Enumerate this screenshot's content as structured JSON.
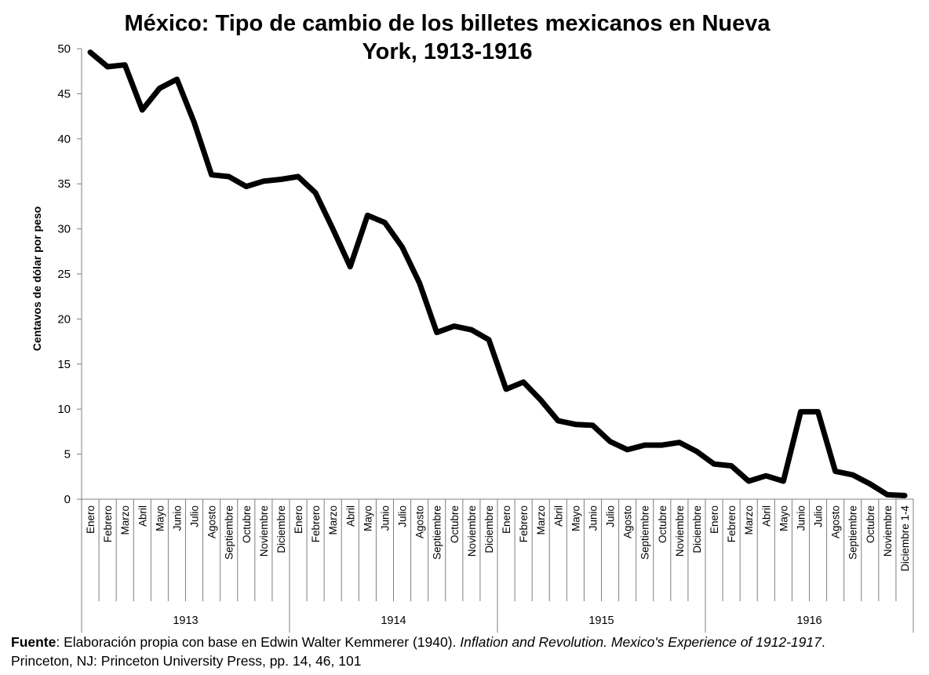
{
  "title": "México: Tipo de cambio de los billetes mexicanos en Nueva York, 1913-1916",
  "source": {
    "label": "Fuente",
    "text1": ": Elaboración propia con base en Edwin Walter Kemmerer (1940). ",
    "italic1": "Inflation and Revolution. Mexico's Experience of 1912-1917",
    "text2": ". Princeton, NJ: Princeton University Press, pp. 14, 46, 101"
  },
  "colors": {
    "line": "#000000",
    "axis": "#7f7f7f"
  },
  "chart_data": {
    "type": "line",
    "title": "México: Tipo de cambio de los billetes mexicanos en Nueva York, 1913-1916",
    "ylabel": "Centavos de dólar por peso",
    "xlabel": "",
    "ylim": [
      0,
      50
    ],
    "yticks": [
      0,
      5,
      10,
      15,
      20,
      25,
      30,
      35,
      40,
      45,
      50
    ],
    "grid": false,
    "legend": "none",
    "years": [
      {
        "label": "1913",
        "months": 12
      },
      {
        "label": "1914",
        "months": 12
      },
      {
        "label": "1915",
        "months": 12
      },
      {
        "label": "1916",
        "months": 12
      }
    ],
    "categories": [
      "Enero",
      "Febrero",
      "Marzo",
      "Abril",
      "Mayo",
      "Junio",
      "Julio",
      "Agosto",
      "Septiembre",
      "Octubre",
      "Noviembre",
      "Diciembre",
      "Enero",
      "Febrero",
      "Marzo",
      "Abril",
      "Mayo",
      "Junio",
      "Julio",
      "Agosto",
      "Septiembre",
      "Octubre",
      "Noviembre",
      "Diciembre",
      "Enero",
      "Febrero",
      "Marzo",
      "Abril",
      "Mayo",
      "Junio",
      "Julio",
      "Agosto",
      "Septiembre",
      "Octubre",
      "Noviembre",
      "Diciembre",
      "Enero",
      "Febrero",
      "Marzo",
      "Abril",
      "Mayo",
      "Junio",
      "Julio",
      "Agosto",
      "Septiembre",
      "Octubre",
      "Noviembre",
      "Diciembre 1-4"
    ],
    "values": [
      49.6,
      48.0,
      48.2,
      43.2,
      45.6,
      46.6,
      41.8,
      36.0,
      35.8,
      34.7,
      35.3,
      35.5,
      35.8,
      34.0,
      30.0,
      25.8,
      31.5,
      30.7,
      28.0,
      24.0,
      18.5,
      19.2,
      18.8,
      17.7,
      12.2,
      13.0,
      11.0,
      8.7,
      8.3,
      8.2,
      6.4,
      5.5,
      6.0,
      6.0,
      6.3,
      5.3,
      3.9,
      3.7,
      2.0,
      2.6,
      2.0,
      9.7,
      9.7,
      3.1,
      2.7,
      1.7,
      0.5,
      0.4
    ]
  }
}
